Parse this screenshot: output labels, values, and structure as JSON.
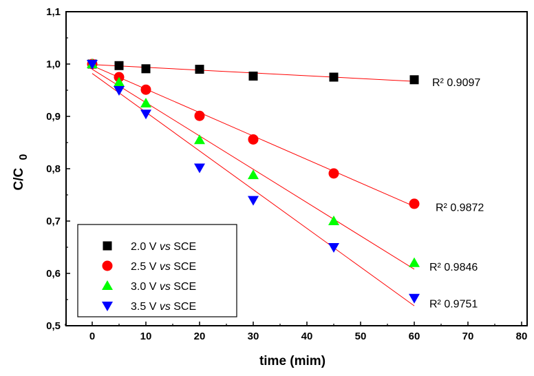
{
  "chart_data": {
    "type": "scatter",
    "xlabel": "time (mim)",
    "ylabel": "C/C 0",
    "ylabel_main": "C/C",
    "ylabel_sub": "0",
    "xlim": [
      -5,
      80
    ],
    "ylim": [
      0.5,
      1.1
    ],
    "x_ticks": [
      0,
      10,
      20,
      30,
      40,
      50,
      60,
      70,
      80
    ],
    "y_ticks": [
      0.5,
      0.6,
      0.7,
      0.8,
      0.9,
      1.0,
      1.1
    ],
    "y_tick_labels": [
      "0,5",
      "0,6",
      "0,7",
      "0,8",
      "0,9",
      "1,0",
      "1,1"
    ],
    "grid": false,
    "legend_position": "bottom-left",
    "series": [
      {
        "name": "2.0 V vs SCE",
        "name_prefix": "2.0 V",
        "name_italic": "vs",
        "name_suffix": "SCE",
        "marker": "square",
        "color": "#000000",
        "x": [
          0,
          5,
          10,
          20,
          30,
          45,
          60
        ],
        "y": [
          1.0,
          0.997,
          0.991,
          0.99,
          0.977,
          0.975,
          0.97
        ],
        "fit": {
          "x0": 0,
          "y0": 0.999,
          "x1": 60,
          "y1": 0.967
        },
        "r2_label": "R² 0.9097",
        "r2_y": 0.966
      },
      {
        "name": "2.5 V vs SCE",
        "name_prefix": "2.5 V",
        "name_italic": "vs",
        "name_suffix": "SCE",
        "marker": "circle",
        "color": "#ff0000",
        "x": [
          0,
          5,
          10,
          20,
          30,
          45,
          60
        ],
        "y": [
          1.0,
          0.975,
          0.951,
          0.901,
          0.856,
          0.791,
          0.733
        ],
        "fit": {
          "x0": 0,
          "y0": 0.997,
          "x1": 60,
          "y1": 0.728
        },
        "r2_label": "R² 0.9872",
        "r2_y": 0.727
      },
      {
        "name": "3.0 V vs SCE",
        "name_prefix": "3.0 V",
        "name_italic": "vs",
        "name_suffix": "SCE",
        "marker": "triangle-up",
        "color": "#00ff00",
        "x": [
          0,
          5,
          10,
          20,
          30,
          45,
          60
        ],
        "y": [
          1.0,
          0.965,
          0.925,
          0.855,
          0.788,
          0.7,
          0.62
        ],
        "fit": {
          "x0": 0,
          "y0": 0.99,
          "x1": 60,
          "y1": 0.608
        },
        "r2_label": "R² 0.9846",
        "r2_y": 0.613
      },
      {
        "name": "3.5 V vs SCE",
        "name_prefix": "3.5 V",
        "name_italic": "vs",
        "name_suffix": "SCE",
        "marker": "triangle-down",
        "color": "#0000ff",
        "x": [
          0,
          5,
          10,
          20,
          30,
          45,
          60
        ],
        "y": [
          1.0,
          0.95,
          0.905,
          0.802,
          0.74,
          0.65,
          0.553
        ],
        "fit": {
          "x0": 0,
          "y0": 0.982,
          "x1": 60,
          "y1": 0.538
        },
        "r2_label": "R² 0.9751",
        "r2_y": 0.543
      }
    ]
  }
}
